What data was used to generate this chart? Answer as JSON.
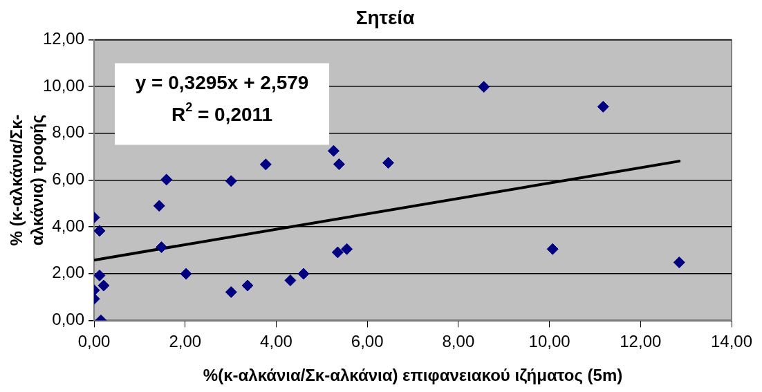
{
  "chart_data": {
    "type": "scatter",
    "title": "Σητεία",
    "xlabel": "%(κ-αλκάνια/Σκ-αλκάνια) επιφανειακού ιζήματος (5m)",
    "ylabel": "% (κ-αλκάνια/Σκ-αλκάνια) τροφής",
    "series": [
      {
        "color": "#000080",
        "marker": "diamond",
        "x": [
          0,
          0.12,
          0,
          0,
          0.12,
          0.21,
          0.15,
          1.43,
          1.48,
          1.59,
          2.02,
          3.01,
          3.01,
          3.37,
          3.77,
          4.31,
          4.6,
          5.26,
          5.38,
          5.35,
          5.55,
          6.46,
          8.56,
          11.18,
          10.07,
          12.85
        ],
        "values": [
          4.4,
          3.83,
          1.29,
          0.92,
          1.92,
          1.49,
          0,
          4.9,
          3.13,
          6.02,
          1.99,
          5.96,
          1.21,
          1.49,
          6.67,
          1.71,
          1.99,
          7.25,
          6.68,
          2.91,
          3.05,
          6.74,
          9.99,
          9.14,
          3.05,
          2.48
        ]
      },
      {
        "type": "line",
        "color": "#000000",
        "marker": "none",
        "line_style": "solid",
        "x": [
          0,
          12.85
        ],
        "values": [
          2.58,
          6.81
        ]
      }
    ],
    "annotations": [
      "y = 0,3295x + 2,579",
      "R$^{2}$ = 0,2011"
    ],
    "xlim": [
      0,
      14
    ],
    "xticks": [
      {
        "value": 0,
        "label": "0,00"
      },
      {
        "value": 2,
        "label": "2,00"
      },
      {
        "value": 4,
        "label": "4,00"
      },
      {
        "value": 6,
        "label": "6,00"
      },
      {
        "value": 8,
        "label": "8,00"
      },
      {
        "value": 10,
        "label": "10,00"
      },
      {
        "value": 12,
        "label": "12,00"
      },
      {
        "value": 14,
        "label": "14,00"
      }
    ],
    "ylim": [
      0,
      12
    ],
    "yticks": [
      {
        "value": 0,
        "label": "0,00"
      },
      {
        "value": 2,
        "label": "2,00"
      },
      {
        "value": 4,
        "label": "4,00"
      },
      {
        "value": 6,
        "label": "6,00"
      },
      {
        "value": 8,
        "label": "8,00"
      },
      {
        "value": 10,
        "label": "10,00"
      },
      {
        "value": 12,
        "label": "12,00"
      }
    ],
    "grid": "y",
    "legend": false
  }
}
